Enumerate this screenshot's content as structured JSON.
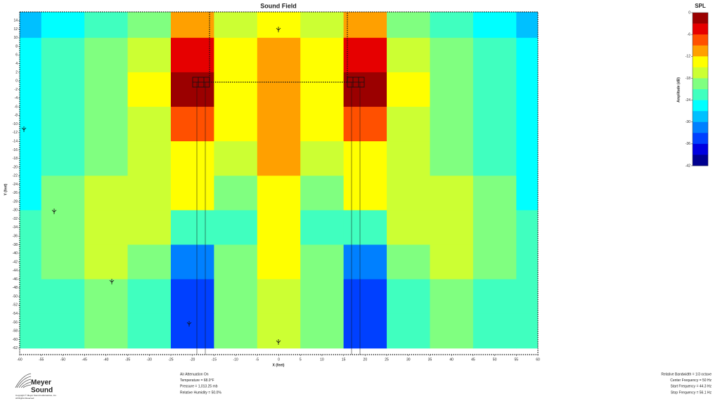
{
  "chart_data": {
    "type": "heatmap",
    "title": "Sound Field",
    "x_label": "X (feet)",
    "y_label": "Y (feet)",
    "x": [
      -60,
      -50,
      -40,
      -30,
      -20,
      -10,
      0,
      10,
      20,
      30,
      40,
      50,
      60
    ],
    "y": [
      14,
      6,
      -2,
      -10,
      -18,
      -26,
      -34,
      -42,
      -50,
      -58
    ],
    "values": [
      [
        -27,
        -24,
        -21,
        -18,
        -9,
        -15,
        -13,
        -15,
        -9,
        -18,
        -21,
        -24,
        -27
      ],
      [
        -25,
        -23,
        -20,
        -15,
        -4,
        -14,
        -11,
        -14,
        -4,
        -15,
        -20,
        -23,
        -25
      ],
      [
        -25,
        -23,
        -20,
        -14,
        -2,
        -12,
        -10,
        -12,
        -2,
        -14,
        -20,
        -23,
        -25
      ],
      [
        -25,
        -22,
        -19,
        -15,
        -8,
        -14,
        -10,
        -14,
        -8,
        -15,
        -19,
        -22,
        -25
      ],
      [
        -24,
        -21,
        -18,
        -16,
        -12,
        -16,
        -11,
        -16,
        -12,
        -16,
        -18,
        -21,
        -24
      ],
      [
        -24,
        -20,
        -17,
        -15,
        -14,
        -20,
        -12,
        -20,
        -14,
        -15,
        -17,
        -20,
        -24
      ],
      [
        -23,
        -20,
        -16,
        -15,
        -22,
        -22,
        -13,
        -22,
        -22,
        -15,
        -16,
        -20,
        -23
      ],
      [
        -23,
        -20,
        -17,
        -19,
        -30,
        -20,
        -14,
        -20,
        -30,
        -19,
        -17,
        -20,
        -23
      ],
      [
        -23,
        -21,
        -18,
        -21,
        -33,
        -19,
        -15,
        -19,
        -33,
        -21,
        -18,
        -21,
        -23
      ],
      [
        -22,
        -21,
        -19,
        -22,
        -34,
        -20,
        -16,
        -20,
        -34,
        -22,
        -19,
        -21,
        -22
      ]
    ],
    "xlim": [
      -60,
      60
    ],
    "ylim": [
      16,
      -63.5
    ],
    "xticks": [
      -60,
      -55,
      -50,
      -45,
      -40,
      -35,
      -30,
      -25,
      -20,
      -15,
      -10,
      -5,
      0,
      5,
      10,
      15,
      20,
      25,
      30,
      35,
      40,
      45,
      50,
      55,
      60
    ],
    "yticks": [
      14,
      12,
      10,
      8,
      6,
      4,
      2,
      0,
      -2,
      -4,
      -6,
      -8,
      -10,
      -12,
      -14,
      -16,
      -18,
      -20,
      -22,
      -24,
      -26,
      -28,
      -30,
      -32,
      -34,
      -36,
      -38,
      -40,
      -42,
      -44,
      -46,
      -48,
      -50,
      -52,
      -54,
      -56,
      -58,
      -60,
      -62
    ],
    "colorbar": {
      "title": "SPL",
      "label": "Amplitude (dB)",
      "lim": [
        0,
        -42
      ],
      "step": 3,
      "ticks": [
        0,
        -6,
        -12,
        -18,
        -24,
        -30,
        -36,
        -42
      ],
      "colors": [
        "#9b0000",
        "#e60000",
        "#ff5000",
        "#ffa000",
        "#ffff00",
        "#ccff33",
        "#80ff80",
        "#40ffbf",
        "#00ffff",
        "#00c0ff",
        "#0080ff",
        "#0040ff",
        "#0000e0",
        "#000090"
      ]
    }
  },
  "info": {
    "left": [
      "Air Attenuation On",
      "Temperature = 68.0°F",
      "Pressure = 1,013.25 mb",
      "Relative Humidity = 50.0%"
    ],
    "right": [
      "Relative Bandwidth = 1/3 octave",
      "Center Frequency = 50 Hz",
      "Start Frequency = 44.3 Hz",
      "Stop Frequency = 56.1 Hz"
    ]
  },
  "logo": {
    "name": [
      "Meyer",
      "Sound"
    ],
    "copyright": [
      "Copyright © Meyer Sound Laboratories, Inc.",
      "All Rights Reserved"
    ]
  }
}
